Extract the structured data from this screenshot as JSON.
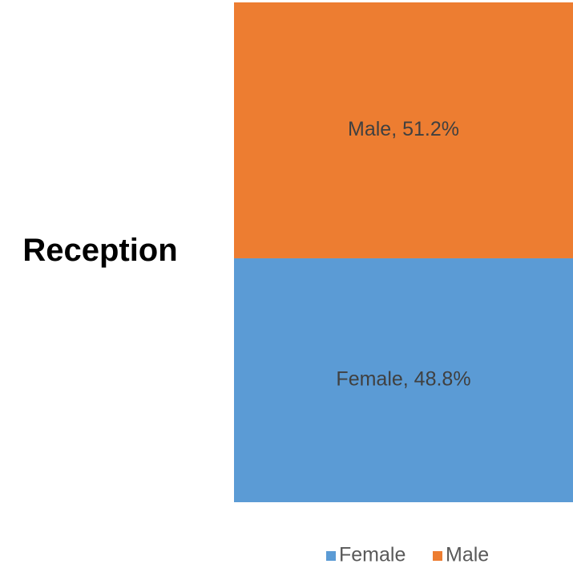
{
  "chart_data": {
    "type": "stacked-bar-100",
    "categories": [
      "Reception"
    ],
    "series": [
      {
        "name": "Female",
        "color": "#5b9bd5",
        "values": [
          48.8
        ],
        "value_labels": [
          "Female, 48.8%"
        ]
      },
      {
        "name": "Male",
        "color": "#ed7d31",
        "values": [
          51.2
        ],
        "value_labels": [
          "Male, 51.2%"
        ]
      }
    ],
    "legend": "bottom"
  }
}
